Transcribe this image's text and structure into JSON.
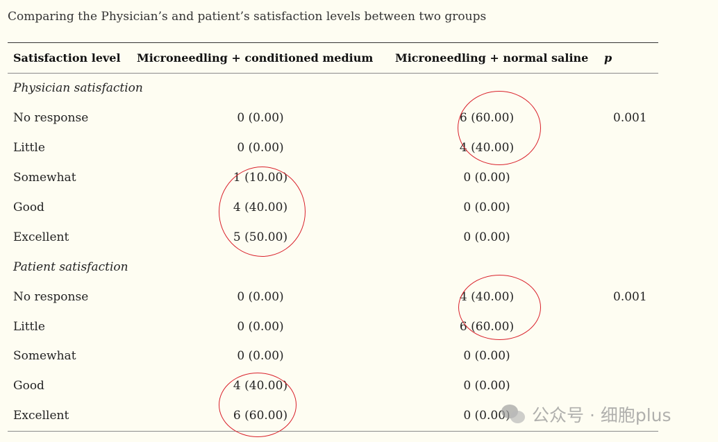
{
  "caption": "Comparing the Physician’s and patient’s satisfaction levels between two groups",
  "headers": {
    "col1": "Satisfaction level",
    "col2": "Microneedling + conditioned medium",
    "col3": "Microneedling + normal saline",
    "col4": "p"
  },
  "physician": {
    "title": "Physician satisfaction",
    "rows": [
      {
        "level": "No response",
        "cm": "0 (0.00)",
        "ns": "6 (60.00)",
        "p": "0.001"
      },
      {
        "level": "Little",
        "cm": "0 (0.00)",
        "ns": "4 (40.00)",
        "p": ""
      },
      {
        "level": "Somewhat",
        "cm": "1 (10.00)",
        "ns": "0 (0.00)",
        "p": ""
      },
      {
        "level": "Good",
        "cm": "4 (40.00)",
        "ns": "0 (0.00)",
        "p": ""
      },
      {
        "level": "Excellent",
        "cm": "5 (50.00)",
        "ns": "0 (0.00)",
        "p": ""
      }
    ]
  },
  "patient": {
    "title": "Patient satisfaction",
    "rows": [
      {
        "level": "No response",
        "cm": "0 (0.00)",
        "ns": "4 (40.00)",
        "p": "0.001"
      },
      {
        "level": "Little",
        "cm": "0 (0.00)",
        "ns": "6 (60.00)",
        "p": ""
      },
      {
        "level": "Somewhat",
        "cm": "0 (0.00)",
        "ns": "0 (0.00)",
        "p": ""
      },
      {
        "level": "Good",
        "cm": "4 (40.00)",
        "ns": "0 (0.00)",
        "p": ""
      },
      {
        "level": "Excellent",
        "cm": "6 (60.00)",
        "ns": "0 (0.00)",
        "p": ""
      }
    ]
  },
  "annotation_color": "#d9202a",
  "watermark": {
    "icon": "wechat-icon",
    "text": "公众号 · 细胞plus"
  }
}
